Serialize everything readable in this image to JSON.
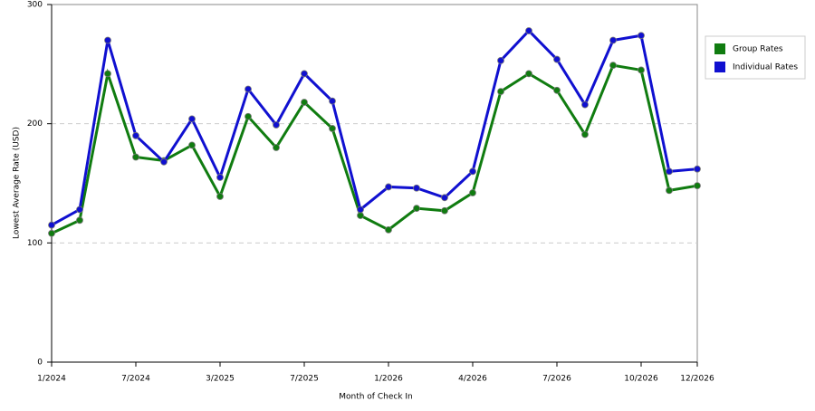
{
  "chart_data": {
    "type": "line",
    "x_label": "Month of Check In",
    "y_label": "Lowest Average Rate (USD)",
    "categories": [
      "1/2024",
      null,
      null,
      "7/2024",
      null,
      null,
      "3/2025",
      null,
      null,
      "7/2025",
      null,
      null,
      "1/2026",
      null,
      null,
      "4/2026",
      null,
      null,
      "7/2026",
      null,
      null,
      "10/2026",
      null,
      "12/2026"
    ],
    "series": [
      {
        "name": "Group Rates",
        "color": "#107c10",
        "values": [
          108,
          119,
          242,
          172,
          169,
          182,
          139,
          206,
          180,
          218,
          196,
          123,
          111,
          129,
          127,
          142,
          227,
          242,
          228,
          191,
          249,
          245,
          144,
          148
        ]
      },
      {
        "name": "Individual Rates",
        "color": "#1010d0",
        "values": [
          115,
          128,
          270,
          190,
          168,
          204,
          155,
          229,
          199,
          242,
          219,
          128,
          147,
          146,
          138,
          160,
          253,
          278,
          254,
          216,
          270,
          274,
          160,
          162
        ]
      }
    ],
    "ylim": [
      0,
      300
    ],
    "yticks": [
      0,
      100,
      200,
      300
    ],
    "grid": true,
    "legend": "right"
  }
}
